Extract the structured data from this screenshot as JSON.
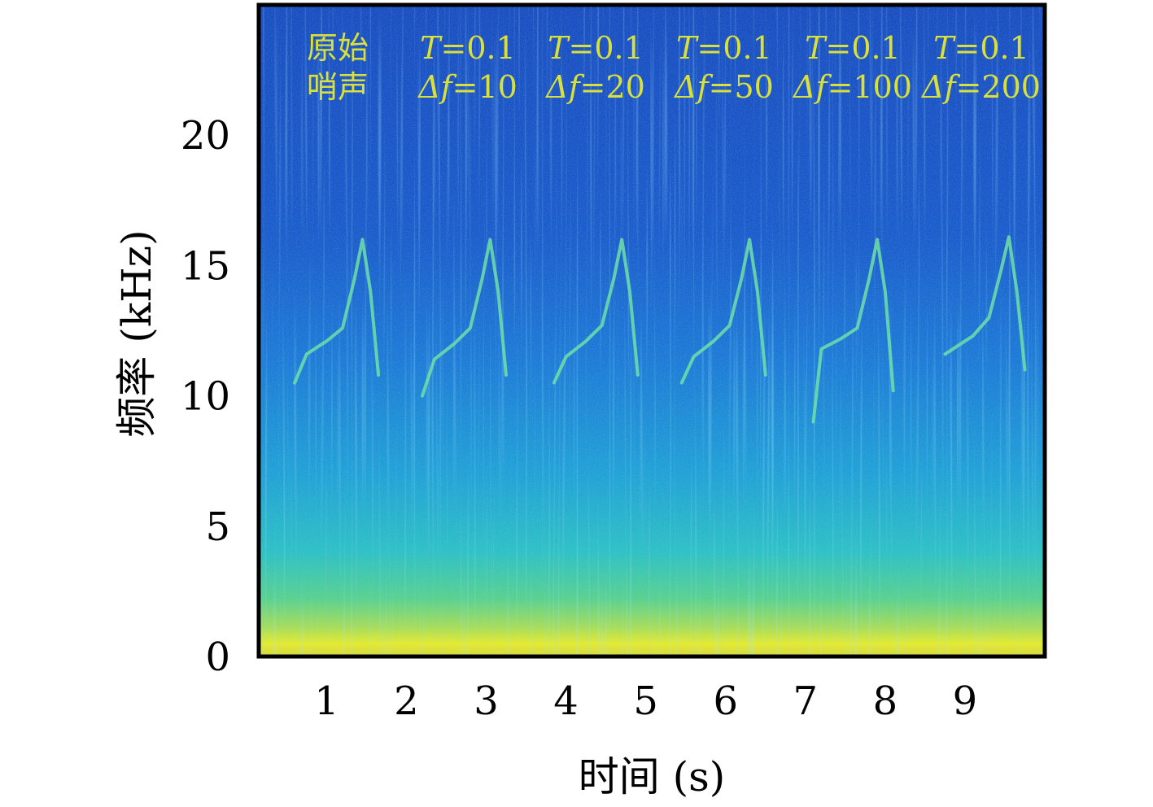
{
  "chart_data": {
    "type": "heatmap",
    "xlabel": "时间 (s)",
    "ylabel": "频率 (kHz)",
    "xlim": [
      0.15,
      10.0
    ],
    "ylim": [
      0,
      25
    ],
    "x_ticks": [
      1,
      2,
      3,
      4,
      5,
      6,
      7,
      8,
      9
    ],
    "y_ticks": [
      0,
      5,
      10,
      15,
      20
    ],
    "colormap": [
      "#1238a8",
      "#1a5ad0",
      "#1d86d8",
      "#25b4c8",
      "#5cd28f",
      "#c8e24a",
      "#f0ee2a"
    ],
    "annotations": [
      {
        "line1": "原始",
        "line2": "哨声"
      },
      {
        "line1_var": "T",
        "line1_val": "=0.1",
        "line2_var": "Δf",
        "line2_val": "=10"
      },
      {
        "line1_var": "T",
        "line1_val": "=0.1",
        "line2_var": "Δf",
        "line2_val": "=20"
      },
      {
        "line1_var": "T",
        "line1_val": "=0.1",
        "line2_var": "Δf",
        "line2_val": "=50"
      },
      {
        "line1_var": "T",
        "line1_val": "=0.1",
        "line2_var": "Δf",
        "line2_val": "=100"
      },
      {
        "line1_var": "T",
        "line1_val": "=0.1",
        "line2_var": "Δf",
        "line2_val": "=200"
      }
    ],
    "whistles": [
      {
        "name": "原始哨声",
        "x": [
          0.6,
          0.75,
          1.0,
          1.2,
          1.35,
          1.45,
          1.55,
          1.65
        ],
        "y": [
          10.5,
          11.6,
          12.1,
          12.6,
          14.5,
          16.0,
          14.0,
          10.8
        ]
      },
      {
        "name": "Δf=10",
        "x": [
          2.2,
          2.35,
          2.6,
          2.8,
          2.95,
          3.05,
          3.15,
          3.25
        ],
        "y": [
          10.0,
          11.4,
          12.0,
          12.6,
          14.5,
          16.0,
          14.0,
          10.8
        ]
      },
      {
        "name": "Δf=20",
        "x": [
          3.85,
          4.0,
          4.25,
          4.45,
          4.6,
          4.7,
          4.8,
          4.9
        ],
        "y": [
          10.5,
          11.5,
          12.1,
          12.7,
          14.5,
          16.0,
          14.0,
          10.8
        ]
      },
      {
        "name": "Δf=50",
        "x": [
          5.45,
          5.6,
          5.85,
          6.05,
          6.2,
          6.3,
          6.4,
          6.5
        ],
        "y": [
          10.5,
          11.5,
          12.1,
          12.7,
          14.5,
          16.0,
          14.0,
          10.8
        ]
      },
      {
        "name": "Δf=100",
        "x": [
          7.1,
          7.2,
          7.45,
          7.65,
          7.8,
          7.9,
          8.0,
          8.1
        ],
        "y": [
          9.0,
          11.8,
          12.2,
          12.6,
          14.5,
          16.0,
          14.0,
          10.2
        ]
      },
      {
        "name": "Δf=200",
        "x": [
          8.75,
          8.9,
          9.1,
          9.3,
          9.45,
          9.55,
          9.65,
          9.75
        ],
        "y": [
          11.6,
          11.9,
          12.3,
          13.0,
          14.8,
          16.1,
          14.0,
          11.0
        ]
      }
    ]
  }
}
